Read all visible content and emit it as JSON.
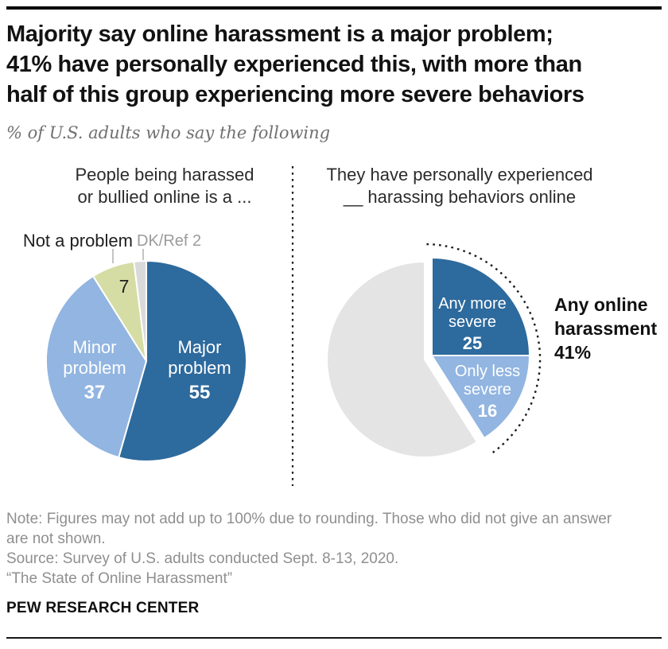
{
  "header": {
    "title_lines": [
      "Majority say online harassment is a major problem;",
      "41% have personally experienced this, with more than",
      "half of this group experiencing more severe behaviors"
    ],
    "subtitle": "% of U.S. adults who say the following"
  },
  "chart_data": [
    {
      "type": "pie",
      "title": "People being harassed or bullied online is a ...",
      "title_lines": [
        "People being harassed",
        "or bullied online is a ..."
      ],
      "start_angle_deg": 0,
      "direction": "clockwise",
      "slices": [
        {
          "label": "Major problem",
          "value": 55,
          "color": "#2D6A9D",
          "text_color": "#FFFFFF"
        },
        {
          "label": "Minor problem",
          "value": 37,
          "color": "#92B5E1",
          "text_color": "#FFFFFF"
        },
        {
          "label": "Not a problem",
          "value": 7,
          "color": "#D5DDA4",
          "text_color": "#222222"
        },
        {
          "label": "DK/Ref",
          "value": 2,
          "color": "#D9D9D9"
        }
      ]
    },
    {
      "type": "pie",
      "title": "They have personally experienced __ harassing behaviors online",
      "title_lines": [
        "They have personally experienced",
        "__ harassing behaviors online"
      ],
      "start_angle_deg": 0,
      "direction": "clockwise",
      "slices": [
        {
          "label": "Any more severe",
          "value": 25,
          "color": "#2D6A9D",
          "text_color": "#FFFFFF",
          "exploded": true
        },
        {
          "label": "Only less severe",
          "value": 16,
          "color": "#92B5E1",
          "text_color": "#FFFFFF",
          "exploded": true
        },
        {
          "label": "",
          "value": 59,
          "color": "#E4E4E4"
        }
      ],
      "annotation": {
        "line1": "Any online",
        "line2": "harassment",
        "value": "41%"
      }
    }
  ],
  "footer": {
    "note_lines": [
      "Note: Figures may not add up to 100% due to rounding. Those who did not give an answer",
      "are not shown."
    ],
    "source": "Source: Survey of U.S. adults conducted Sept. 8-13, 2020.",
    "quote": "“The State of Online Harassment”",
    "brand": "PEW RESEARCH CENTER"
  }
}
